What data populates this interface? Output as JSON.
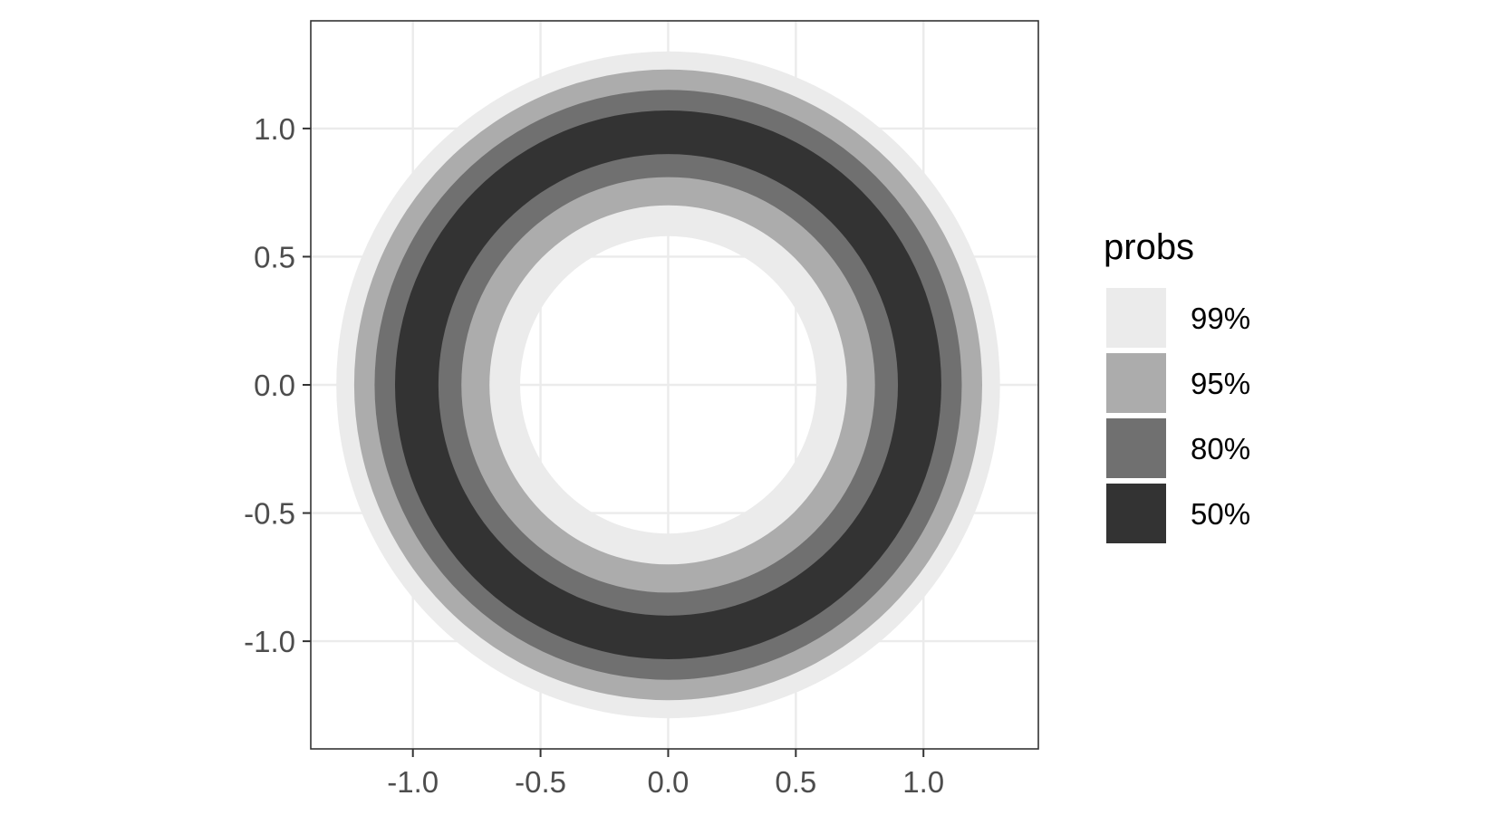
{
  "chart_data": {
    "type": "area",
    "title": "",
    "xlabel": "",
    "ylabel": "",
    "xlim": [
      -1.4,
      1.45
    ],
    "ylim": [
      -1.42,
      1.42
    ],
    "x_ticks": [
      -1.0,
      -0.5,
      0.0,
      0.5,
      1.0
    ],
    "y_ticks": [
      -1.0,
      -0.5,
      0.0,
      0.5,
      1.0
    ],
    "x_tick_labels": [
      "-1.0",
      "-0.5",
      "0.0",
      "0.5",
      "1.0"
    ],
    "y_tick_labels": [
      "-1.0",
      "-0.5",
      "0.0",
      "0.5",
      "1.0"
    ],
    "grid": true,
    "center": [
      0,
      0
    ],
    "series": [
      {
        "name": "99%",
        "inner_radius": 0.58,
        "outer_radius": 1.3,
        "color": "#ebebeb"
      },
      {
        "name": "95%",
        "inner_radius": 0.7,
        "outer_radius": 1.23,
        "color": "#acacac"
      },
      {
        "name": "80%",
        "inner_radius": 0.81,
        "outer_radius": 1.15,
        "color": "#707070"
      },
      {
        "name": "50%",
        "inner_radius": 0.9,
        "outer_radius": 1.07,
        "color": "#333333"
      }
    ],
    "legend": {
      "title": "probs",
      "position": "right",
      "entries": [
        "99%",
        "95%",
        "80%",
        "50%"
      ]
    },
    "panel_border_color": "#333333",
    "grid_color": "#ebebeb"
  }
}
